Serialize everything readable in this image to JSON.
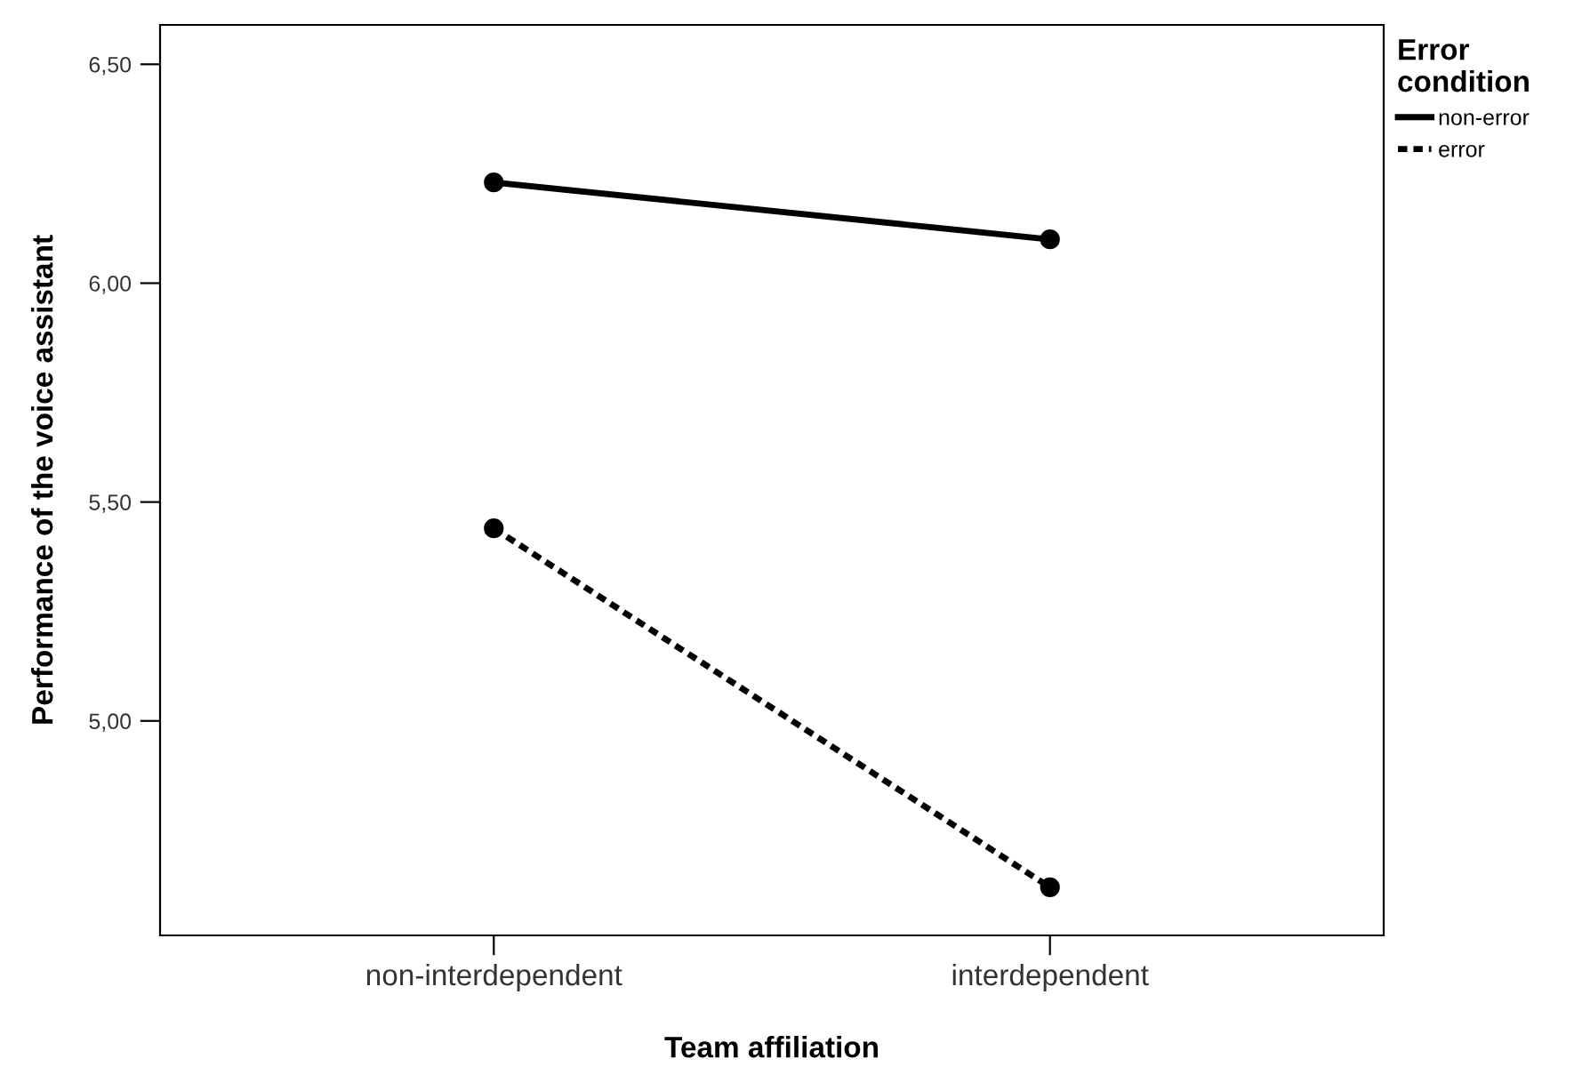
{
  "chart_data": {
    "type": "line",
    "xlabel": "Team affiliation",
    "ylabel": "Performance of the voice assistant",
    "legend_title": "Error\ncondition",
    "categories": [
      "non-interdependent",
      "interdependent"
    ],
    "series": [
      {
        "name": "non-error",
        "color": "#000000",
        "values": [
          6.23,
          6.1
        ],
        "line_style": "solid"
      },
      {
        "name": "error",
        "color": "#000000",
        "values": [
          5.44,
          4.62
        ],
        "line_style": "dotted"
      }
    ],
    "ylim": [
      4.51,
      6.59
    ],
    "yticks": [
      {
        "value": 5.0,
        "label": "5,00"
      },
      {
        "value": 5.5,
        "label": "5,50"
      },
      {
        "value": 6.0,
        "label": "6,00"
      },
      {
        "value": 6.5,
        "label": "6,50"
      }
    ],
    "marker": "circle",
    "grid": false,
    "legend": "top right"
  }
}
